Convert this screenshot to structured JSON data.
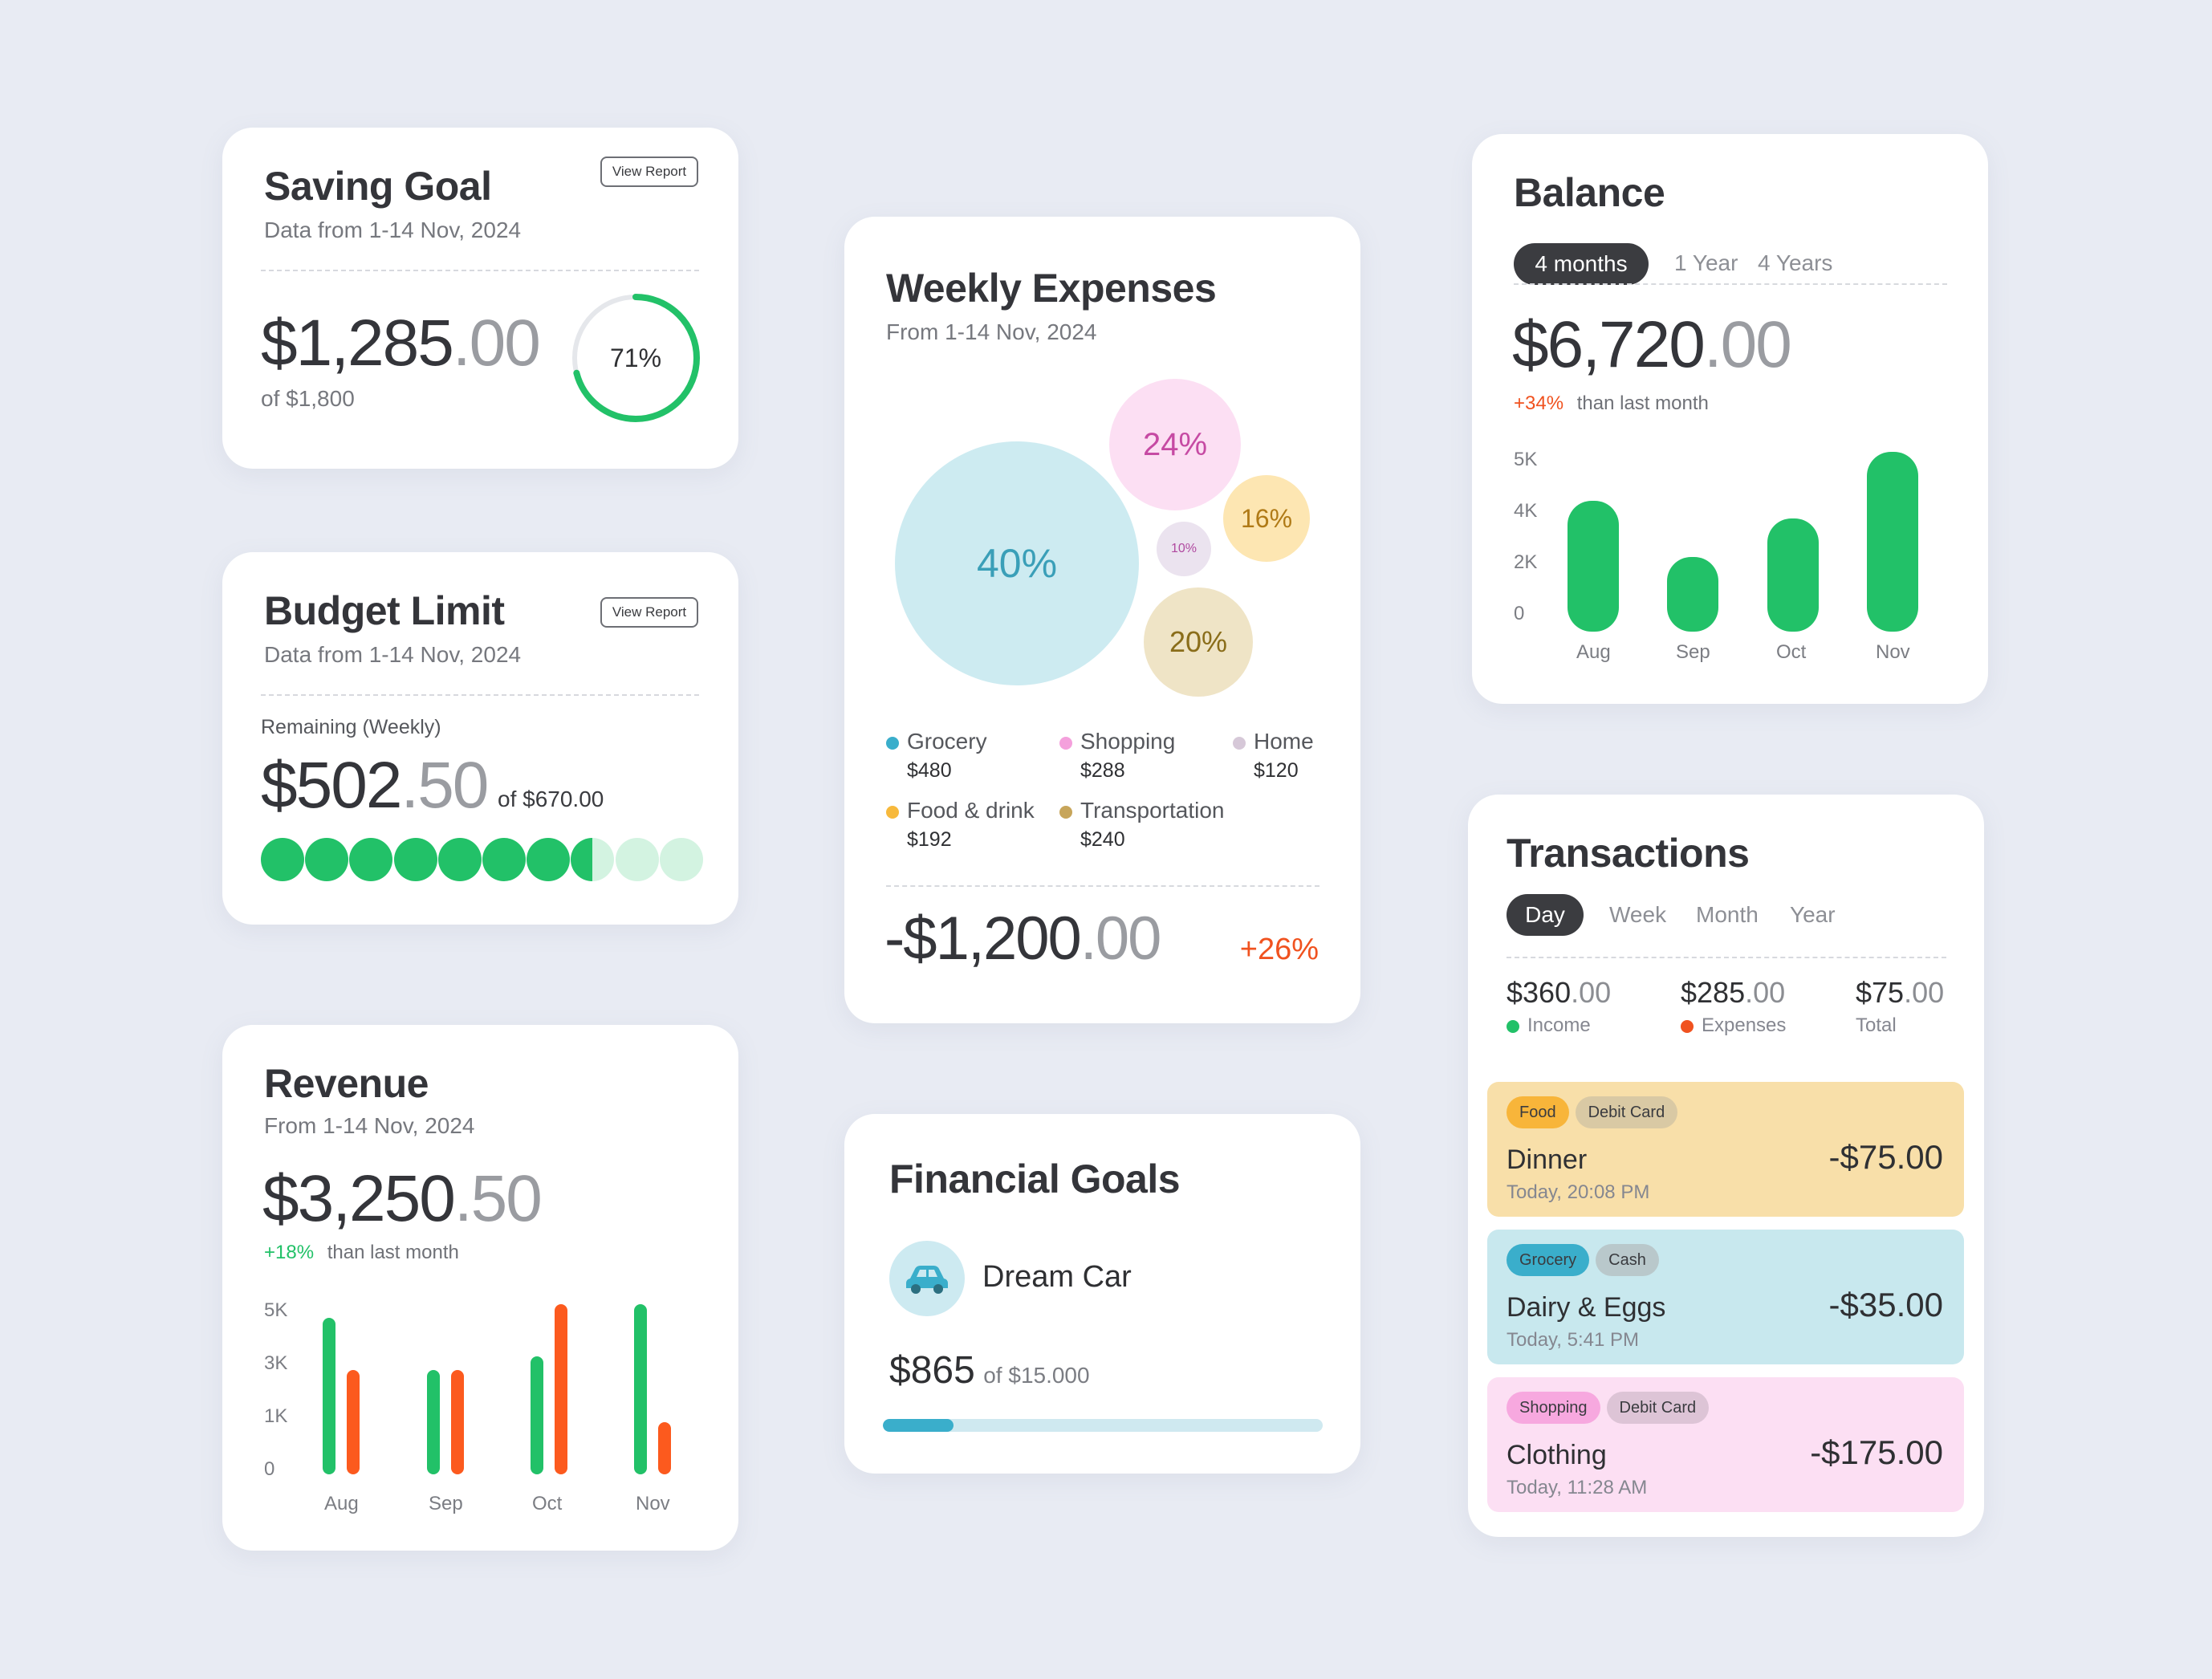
{
  "saving_goal": {
    "title": "Saving Goal",
    "subtitle": "Data from 1-14 Nov, 2024",
    "view_report": "View Report",
    "amount_main": "$1,285",
    "amount_dec": ".00",
    "of_total": "of $1,800",
    "progress_label": "71%",
    "progress": 0.71,
    "color": "#22c168"
  },
  "budget_limit": {
    "title": "Budget Limit",
    "subtitle": "Data from 1-14 Nov, 2024",
    "view_report": "View Report",
    "remaining_label": "Remaining (Weekly)",
    "amount_main": "$502",
    "amount_dec": ".50",
    "of_total": "of $670.00",
    "dots_total": 10,
    "dots_filled": 7.5
  },
  "revenue": {
    "title": "Revenue",
    "subtitle": "From 1-14 Nov, 2024",
    "amount_main": "$3,250",
    "amount_dec": ".50",
    "change": "+18%",
    "change_text": "than last month",
    "y_ticks": [
      "5K",
      "3K",
      "1K",
      "0"
    ],
    "categories": [
      "Aug",
      "Sep",
      "Oct",
      "Nov"
    ]
  },
  "weekly_expenses": {
    "title": "Weekly Expenses",
    "subtitle": "From 1-14 Nov, 2024",
    "bubbles": [
      {
        "label": "40%",
        "color": "#cdebf1",
        "text_color": "#3a9fb8"
      },
      {
        "label": "24%",
        "color": "#fcdff3",
        "text_color": "#c64aa3"
      },
      {
        "label": "16%",
        "color": "#fde6b2",
        "text_color": "#b07a16"
      },
      {
        "label": "10%",
        "color": "#ebe3ef",
        "text_color": "#b04aa0"
      },
      {
        "label": "20%",
        "color": "#efe4c6",
        "text_color": "#8a6d1a"
      }
    ],
    "legend": [
      {
        "name": "Grocery",
        "value": "$480",
        "color": "#3aaecb"
      },
      {
        "name": "Shopping",
        "value": "$288",
        "color": "#f4a0dc"
      },
      {
        "name": "Home",
        "value": "$120",
        "color": "#d6c8d8"
      },
      {
        "name": "Food & drink",
        "value": "$192",
        "color": "#f7b93c"
      },
      {
        "name": "Transportation",
        "value": "$240",
        "color": "#c7a55a"
      }
    ],
    "total_main": "-$1,200",
    "total_dec": ".00",
    "change": "+26%"
  },
  "financial_goals": {
    "title": "Financial Goals",
    "goal_name": "Dream Car",
    "amount": "$865",
    "of_total": "of $15.000",
    "progress": 0.16
  },
  "balance": {
    "title": "Balance",
    "tabs": [
      "4 months",
      "1 Year",
      "4 Years"
    ],
    "amount_main": "$6,720",
    "amount_dec": ".00",
    "change": "+34%",
    "change_text": "than last month",
    "y_ticks": [
      "5K",
      "4K",
      "2K",
      "0"
    ],
    "categories": [
      "Aug",
      "Sep",
      "Oct",
      "Nov"
    ]
  },
  "transactions": {
    "title": "Transactions",
    "tabs": [
      "Day",
      "Week",
      "Month",
      "Year"
    ],
    "summary": [
      {
        "main": "$360",
        "dec": ".00",
        "label": "Income",
        "color": "#22c168"
      },
      {
        "main": "$285",
        "dec": ".00",
        "label": "Expenses",
        "color": "#f0521f"
      },
      {
        "main": "$75",
        "dec": ".00",
        "label": "Total",
        "color": ""
      }
    ],
    "items": [
      {
        "chips": [
          "Food",
          "Debit Card"
        ],
        "name": "Dinner",
        "time": "Today, 20:08 PM",
        "amount": "-$75.00"
      },
      {
        "chips": [
          "Grocery",
          "Cash"
        ],
        "name": "Dairy & Eggs",
        "time": "Today, 5:41 PM",
        "amount": "-$35.00"
      },
      {
        "chips": [
          "Shopping",
          "Debit Card"
        ],
        "name": "Clothing",
        "time": "Today, 11:28 AM",
        "amount": "-$175.00"
      }
    ]
  },
  "chart_data": [
    {
      "type": "bar",
      "title": "Revenue",
      "categories": [
        "Aug",
        "Sep",
        "Oct",
        "Nov"
      ],
      "series": [
        {
          "values": [
            6000,
            4000,
            4500,
            6500
          ]
        },
        {
          "values": [
            4000,
            4000,
            6500,
            2000
          ]
        }
      ],
      "y_ticks": [
        "5K",
        "3K",
        "1K",
        "0"
      ],
      "colors": [
        "#22c168",
        "#fc5a1e"
      ]
    },
    {
      "type": "bar",
      "title": "Balance",
      "categories": [
        "Aug",
        "Sep",
        "Oct",
        "Nov"
      ],
      "values": [
        5100,
        2900,
        4400,
        7000
      ],
      "y_ticks": [
        "5K",
        "4K",
        "2K",
        "0"
      ],
      "colors": [
        "#22c168"
      ]
    }
  ]
}
